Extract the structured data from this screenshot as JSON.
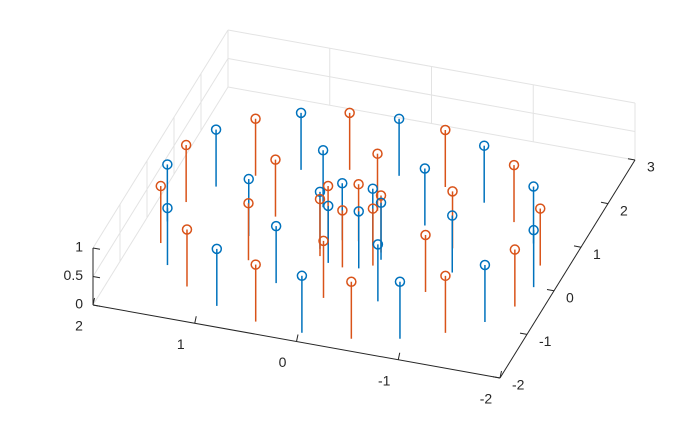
{
  "chart_data": {
    "type": "stem3",
    "xlim": [
      -2,
      2
    ],
    "ylim": [
      -2,
      3
    ],
    "zlim": [
      0,
      1
    ],
    "xticks": [
      -2,
      -1,
      0,
      1,
      2
    ],
    "yticks": [
      -2,
      -1,
      0,
      1,
      2,
      3
    ],
    "zticks": [
      0,
      0.5,
      1
    ],
    "grid": true,
    "series": [
      {
        "color": "#0072bd",
        "x": [
          1.8,
          1.56,
          0.9,
          0,
          -0.9,
          -1.56,
          -1.8,
          -1.56,
          -0.9,
          0,
          0.9,
          1.56,
          1,
          0.5,
          -0.5,
          -1,
          -0.5,
          0.5,
          0.3,
          0.15,
          -0.15,
          -0.3,
          -0.15,
          0.15
        ],
        "y": [
          0,
          0.9,
          1.56,
          1.8,
          1.56,
          0.9,
          0,
          -0.9,
          -1.56,
          -1.8,
          -1.56,
          -0.9,
          0,
          0.87,
          0.87,
          0,
          -0.87,
          -0.87,
          0,
          0.26,
          0.26,
          0,
          -0.26,
          -0.26
        ],
        "z": [
          1,
          1,
          1,
          1,
          1,
          1,
          1,
          1,
          1,
          1,
          1,
          1,
          1,
          1,
          1,
          1,
          1,
          1,
          1,
          1,
          1,
          1,
          1,
          1
        ]
      },
      {
        "color": "#d95319",
        "x": [
          1.74,
          1.27,
          0.47,
          -0.47,
          -1.27,
          -1.74,
          -1.74,
          -1.27,
          -0.47,
          0.47,
          1.27,
          1.74,
          0.87,
          0,
          -0.87,
          -0.87,
          0,
          0.87,
          0.26,
          0,
          -0.26,
          -0.26,
          0,
          0.26
        ],
        "y": [
          0.47,
          1.27,
          1.74,
          1.74,
          1.27,
          0.47,
          -0.47,
          -1.27,
          -1.74,
          -1.74,
          -1.27,
          -0.47,
          0.5,
          1,
          0.5,
          -0.5,
          -1,
          -0.5,
          0.15,
          0.3,
          0.15,
          -0.15,
          -0.3,
          -0.15
        ],
        "z": [
          1,
          1,
          1,
          1,
          1,
          1,
          1,
          1,
          1,
          1,
          1,
          1,
          1,
          1,
          1,
          1,
          1,
          1,
          1,
          1,
          1,
          1,
          1,
          1
        ]
      }
    ]
  }
}
